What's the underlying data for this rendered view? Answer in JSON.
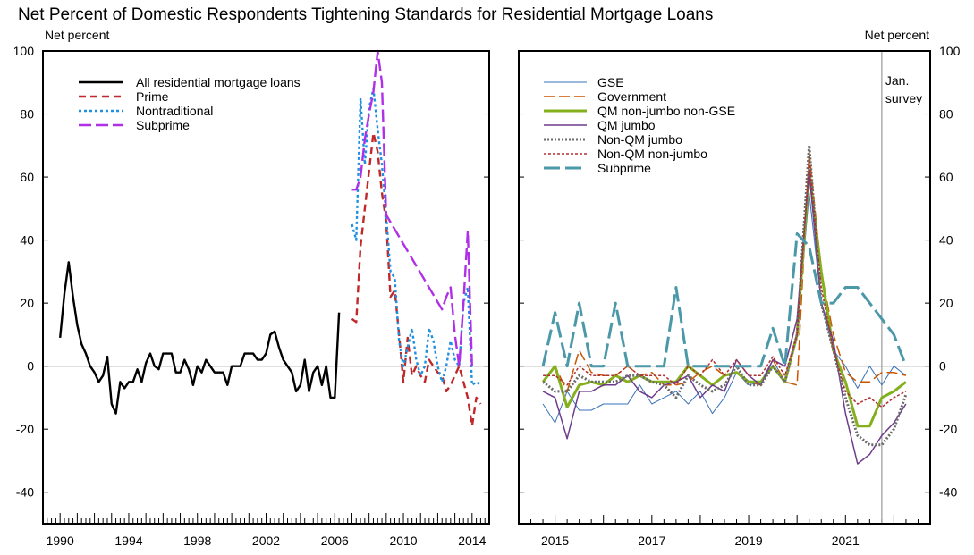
{
  "title": "Net Percent of Domestic Respondents Tightening Standards for Residential Mortgage Loans",
  "left_unit_label": "Net percent",
  "right_unit_label": "Net percent",
  "survey_note_line1": "Jan.",
  "survey_note_line2": "survey",
  "chart_data": [
    {
      "type": "line",
      "ylim": [
        -50,
        100
      ],
      "yticks": [
        -40,
        -20,
        0,
        20,
        40,
        60,
        80,
        100
      ],
      "xlim": [
        1989.0,
        2015.0
      ],
      "xtick_labels": [
        "1990",
        "1994",
        "1998",
        "2002",
        "2006",
        "2010",
        "2014"
      ],
      "xtick_values": [
        1990,
        1994,
        1998,
        2002,
        2006,
        2010,
        2014
      ],
      "legend_position": "top-left",
      "series": [
        {
          "name": "All residential mortgage loans",
          "color": "#000000",
          "dash": "solid",
          "x": [
            1990.0,
            1990.25,
            1990.5,
            1990.75,
            1991.0,
            1991.25,
            1991.5,
            1991.75,
            1992.0,
            1992.25,
            1992.5,
            1992.75,
            1993.0,
            1993.25,
            1993.5,
            1993.75,
            1994.0,
            1994.25,
            1994.5,
            1994.75,
            1995.0,
            1995.25,
            1995.5,
            1995.75,
            1996.0,
            1996.25,
            1996.5,
            1996.75,
            1997.0,
            1997.25,
            1997.5,
            1997.75,
            1998.0,
            1998.25,
            1998.5,
            1998.75,
            1999.0,
            1999.25,
            1999.5,
            1999.75,
            2000.0,
            2000.25,
            2000.5,
            2000.75,
            2001.0,
            2001.25,
            2001.5,
            2001.75,
            2002.0,
            2002.25,
            2002.5,
            2002.75,
            2003.0,
            2003.25,
            2003.5,
            2003.75,
            2004.0,
            2004.25,
            2004.5,
            2004.75,
            2005.0,
            2005.25,
            2005.5,
            2005.75,
            2006.0,
            2006.25
          ],
          "y": [
            9,
            23,
            33,
            22,
            13,
            7,
            4,
            0,
            -2,
            -5,
            -3,
            3,
            -12,
            -15,
            -5,
            -7,
            -5,
            -5,
            -1,
            -5,
            1,
            4,
            0,
            -1,
            4,
            4,
            4,
            -2,
            -2,
            2,
            -1,
            -6,
            0,
            -2,
            2,
            0,
            -2,
            -2,
            -2,
            -6,
            0,
            0,
            0,
            4,
            4,
            4,
            2,
            2,
            4,
            10,
            11,
            6,
            2,
            0,
            -2,
            -8,
            -6,
            2,
            -8,
            -2,
            0,
            -6,
            0,
            -10,
            -10,
            17
          ]
        },
        {
          "name": "Prime",
          "color": "#c0292b",
          "dash": "8,5",
          "x": [
            2007.0,
            2007.25,
            2007.5,
            2007.75,
            2008.0,
            2008.25,
            2008.5,
            2008.75,
            2009.0,
            2009.25,
            2009.5,
            2009.75,
            2010.0,
            2010.25,
            2010.5,
            2010.75,
            2011.0,
            2011.25,
            2011.5,
            2011.75,
            2012.0,
            2012.25,
            2012.5,
            2012.75,
            2013.0,
            2013.25,
            2013.5,
            2013.75,
            2014.0,
            2014.25,
            2014.5
          ],
          "y": [
            15,
            14,
            38,
            50,
            62,
            74,
            68,
            55,
            46,
            22,
            24,
            10,
            -5,
            9,
            -3,
            0,
            -3,
            -5,
            2,
            0,
            -2,
            -3,
            -8,
            -6,
            -3,
            0,
            -5,
            -10,
            -19,
            -10,
            -12
          ]
        },
        {
          "name": "Nontraditional",
          "color": "#1e90e0",
          "dash": "3,3",
          "x": [
            2007.0,
            2007.25,
            2007.5,
            2007.75,
            2008.0,
            2008.25,
            2008.5,
            2008.75,
            2009.0,
            2009.25,
            2009.5,
            2009.75,
            2010.0,
            2010.25,
            2010.5,
            2010.75,
            2011.0,
            2011.25,
            2011.5,
            2011.75,
            2012.0,
            2012.25,
            2012.5,
            2012.75,
            2013.0,
            2013.25,
            2013.5,
            2013.75,
            2014.0,
            2014.25,
            2014.5
          ],
          "y": [
            45,
            40,
            85,
            64,
            82,
            88,
            75,
            64,
            48,
            30,
            28,
            8,
            0,
            6,
            12,
            2,
            -3,
            0,
            12,
            8,
            0,
            -5,
            0,
            8,
            2,
            0,
            20,
            25,
            -6,
            -5,
            -6
          ]
        },
        {
          "name": "Subprime",
          "color": "#b030e8",
          "dash": "14,5",
          "x": [
            2007.0,
            2007.25,
            2007.5,
            2007.75,
            2008.0,
            2008.25,
            2008.5,
            2008.75,
            2009.0,
            2012.25,
            2012.5,
            2012.75,
            2013.0,
            2013.25,
            2013.5,
            2013.75,
            2014.0
          ],
          "y": [
            56,
            56,
            60,
            72,
            80,
            87,
            100,
            90,
            48,
            18,
            22,
            25,
            10,
            0,
            20,
            43,
            0
          ]
        }
      ]
    },
    {
      "type": "line",
      "ylim": [
        -50,
        100
      ],
      "yticks": [
        -40,
        -20,
        0,
        20,
        40,
        60,
        80,
        100
      ],
      "xlim": [
        2014.25,
        2022.75
      ],
      "xtick_labels": [
        "2015",
        "2017",
        "2019",
        "2021"
      ],
      "xtick_values": [
        2015,
        2017,
        2019,
        2021
      ],
      "survey_line_x": 2021.75,
      "legend_position": "top-left",
      "series": [
        {
          "name": "GSE",
          "color": "#3a72b8",
          "dash": "solid",
          "width": 1,
          "x": [
            2014.75,
            2015.0,
            2015.25,
            2015.5,
            2015.75,
            2016.0,
            2016.25,
            2016.5,
            2016.75,
            2017.0,
            2017.25,
            2017.5,
            2017.75,
            2018.0,
            2018.25,
            2018.5,
            2018.75,
            2019.0,
            2019.25,
            2019.5,
            2019.75,
            2020.0,
            2020.25,
            2020.5,
            2020.75,
            2021.0,
            2021.25,
            2021.5,
            2021.75,
            2022.0,
            2022.25
          ],
          "y": [
            -12,
            -18,
            -8,
            -14,
            -14,
            -12,
            -12,
            -12,
            -6,
            -12,
            -10,
            -8,
            -12,
            -8,
            -15,
            -10,
            -2,
            -6,
            -5,
            2,
            -5,
            10,
            55,
            20,
            5,
            0,
            -7,
            0,
            -6,
            0,
            -3
          ]
        },
        {
          "name": "Government",
          "color": "#cc5500",
          "dash": "12,5",
          "width": 1.5,
          "x": [
            2014.75,
            2015.0,
            2015.25,
            2015.5,
            2015.75,
            2016.0,
            2016.25,
            2016.5,
            2016.75,
            2017.0,
            2017.25,
            2017.5,
            2017.75,
            2018.0,
            2018.25,
            2018.5,
            2018.75,
            2019.0,
            2019.25,
            2019.5,
            2019.75,
            2020.0,
            2020.25,
            2020.5,
            2020.75,
            2021.0,
            2021.25,
            2021.5,
            2021.75,
            2022.0,
            2022.25
          ],
          "y": [
            -5,
            0,
            -8,
            5,
            -2,
            -3,
            -3,
            0,
            -3,
            -2,
            -6,
            -6,
            -5,
            -2,
            0,
            -3,
            -2,
            -5,
            -6,
            2,
            -5,
            -6,
            68,
            30,
            10,
            -2,
            -5,
            -5,
            -2,
            -2,
            -3
          ]
        },
        {
          "name": "QM non-jumbo non-GSE",
          "color": "#84b01e",
          "dash": "solid",
          "width": 3,
          "x": [
            2014.75,
            2015.0,
            2015.25,
            2015.5,
            2015.75,
            2016.0,
            2016.25,
            2016.5,
            2016.75,
            2017.0,
            2017.25,
            2017.5,
            2017.75,
            2018.0,
            2018.25,
            2018.5,
            2018.75,
            2019.0,
            2019.25,
            2019.5,
            2019.75,
            2020.0,
            2020.25,
            2020.5,
            2020.75,
            2021.0,
            2021.25,
            2021.5,
            2021.75,
            2022.0,
            2022.25
          ],
          "y": [
            -5,
            0,
            -13,
            -6,
            -5,
            -6,
            -3,
            -5,
            -3,
            -5,
            -5,
            -5,
            0,
            -3,
            -6,
            -3,
            -2,
            -5,
            -5,
            0,
            -5,
            10,
            62,
            30,
            5,
            -5,
            -19,
            -19,
            -10,
            -8,
            -5
          ]
        },
        {
          "name": "QM jumbo",
          "color": "#6e3c8c",
          "dash": "solid",
          "width": 1.5,
          "x": [
            2014.75,
            2015.0,
            2015.25,
            2015.5,
            2015.75,
            2016.0,
            2016.25,
            2016.5,
            2016.75,
            2017.0,
            2017.25,
            2017.5,
            2017.75,
            2018.0,
            2018.25,
            2018.5,
            2018.75,
            2019.0,
            2019.25,
            2019.5,
            2019.75,
            2020.0,
            2020.25,
            2020.5,
            2020.75,
            2021.0,
            2021.25,
            2021.5,
            2021.75,
            2022.0,
            2022.25
          ],
          "y": [
            -8,
            -10,
            -23,
            -8,
            -8,
            -6,
            -6,
            -3,
            -8,
            -10,
            -6,
            -5,
            -3,
            -10,
            -6,
            -8,
            2,
            -3,
            -6,
            2,
            0,
            15,
            62,
            20,
            8,
            -15,
            -31,
            -28,
            -22,
            -18,
            -12
          ]
        },
        {
          "name": "Non-QM jumbo",
          "color": "#6b6b6b",
          "dash": "2,2",
          "width": 3,
          "x": [
            2014.75,
            2015.0,
            2015.25,
            2015.5,
            2015.75,
            2016.0,
            2016.25,
            2016.5,
            2016.75,
            2017.0,
            2017.25,
            2017.5,
            2017.75,
            2018.0,
            2018.25,
            2018.5,
            2018.75,
            2019.0,
            2019.25,
            2019.5,
            2019.75,
            2020.0,
            2020.25,
            2020.5,
            2020.75,
            2021.0,
            2021.25,
            2021.5,
            2021.75,
            2022.0,
            2022.25
          ],
          "y": [
            -5,
            -8,
            -8,
            -3,
            -5,
            -5,
            -5,
            -3,
            -3,
            -5,
            -6,
            -10,
            -3,
            -6,
            -8,
            -6,
            0,
            -6,
            -6,
            0,
            -5,
            10,
            70,
            20,
            5,
            -10,
            -22,
            -25,
            -25,
            -20,
            -9
          ]
        },
        {
          "name": "Non-QM non-jumbo",
          "color": "#b03030",
          "dash": "3,2",
          "width": 1.5,
          "x": [
            2014.75,
            2015.0,
            2015.25,
            2015.5,
            2015.75,
            2016.0,
            2016.25,
            2016.5,
            2016.75,
            2017.0,
            2017.25,
            2017.5,
            2017.75,
            2018.0,
            2018.25,
            2018.5,
            2018.75,
            2019.0,
            2019.25,
            2019.5,
            2019.75,
            2020.0,
            2020.25,
            2020.5,
            2020.75,
            2021.0,
            2021.25,
            2021.5,
            2021.75,
            2022.0,
            2022.25
          ],
          "y": [
            -3,
            -3,
            -6,
            0,
            -3,
            -3,
            -3,
            0,
            -3,
            -3,
            -3,
            -6,
            0,
            -3,
            2,
            -3,
            2,
            -3,
            -3,
            3,
            -3,
            10,
            65,
            25,
            5,
            -8,
            -12,
            -10,
            -13,
            -10,
            -8
          ]
        },
        {
          "name": "Subprime",
          "color": "#4a98a8",
          "dash": "18,6",
          "width": 3,
          "x": [
            2014.75,
            2015.0,
            2015.25,
            2015.5,
            2015.75,
            2016.0,
            2016.25,
            2016.5,
            2016.75,
            2017.0,
            2017.25,
            2017.5,
            2017.75,
            2018.0,
            2018.25,
            2018.5,
            2018.75,
            2019.0,
            2019.25,
            2019.5,
            2019.75,
            2020.0,
            2020.25,
            2020.5,
            2020.75,
            2021.0,
            2021.25,
            2021.5,
            2021.75,
            2022.0,
            2022.25
          ],
          "y": [
            0,
            17,
            0,
            20,
            0,
            0,
            20,
            0,
            0,
            0,
            0,
            25,
            0,
            0,
            0,
            0,
            0,
            0,
            0,
            12,
            0,
            42,
            38,
            20,
            20,
            25,
            25,
            20,
            15,
            10,
            0
          ]
        }
      ]
    }
  ]
}
